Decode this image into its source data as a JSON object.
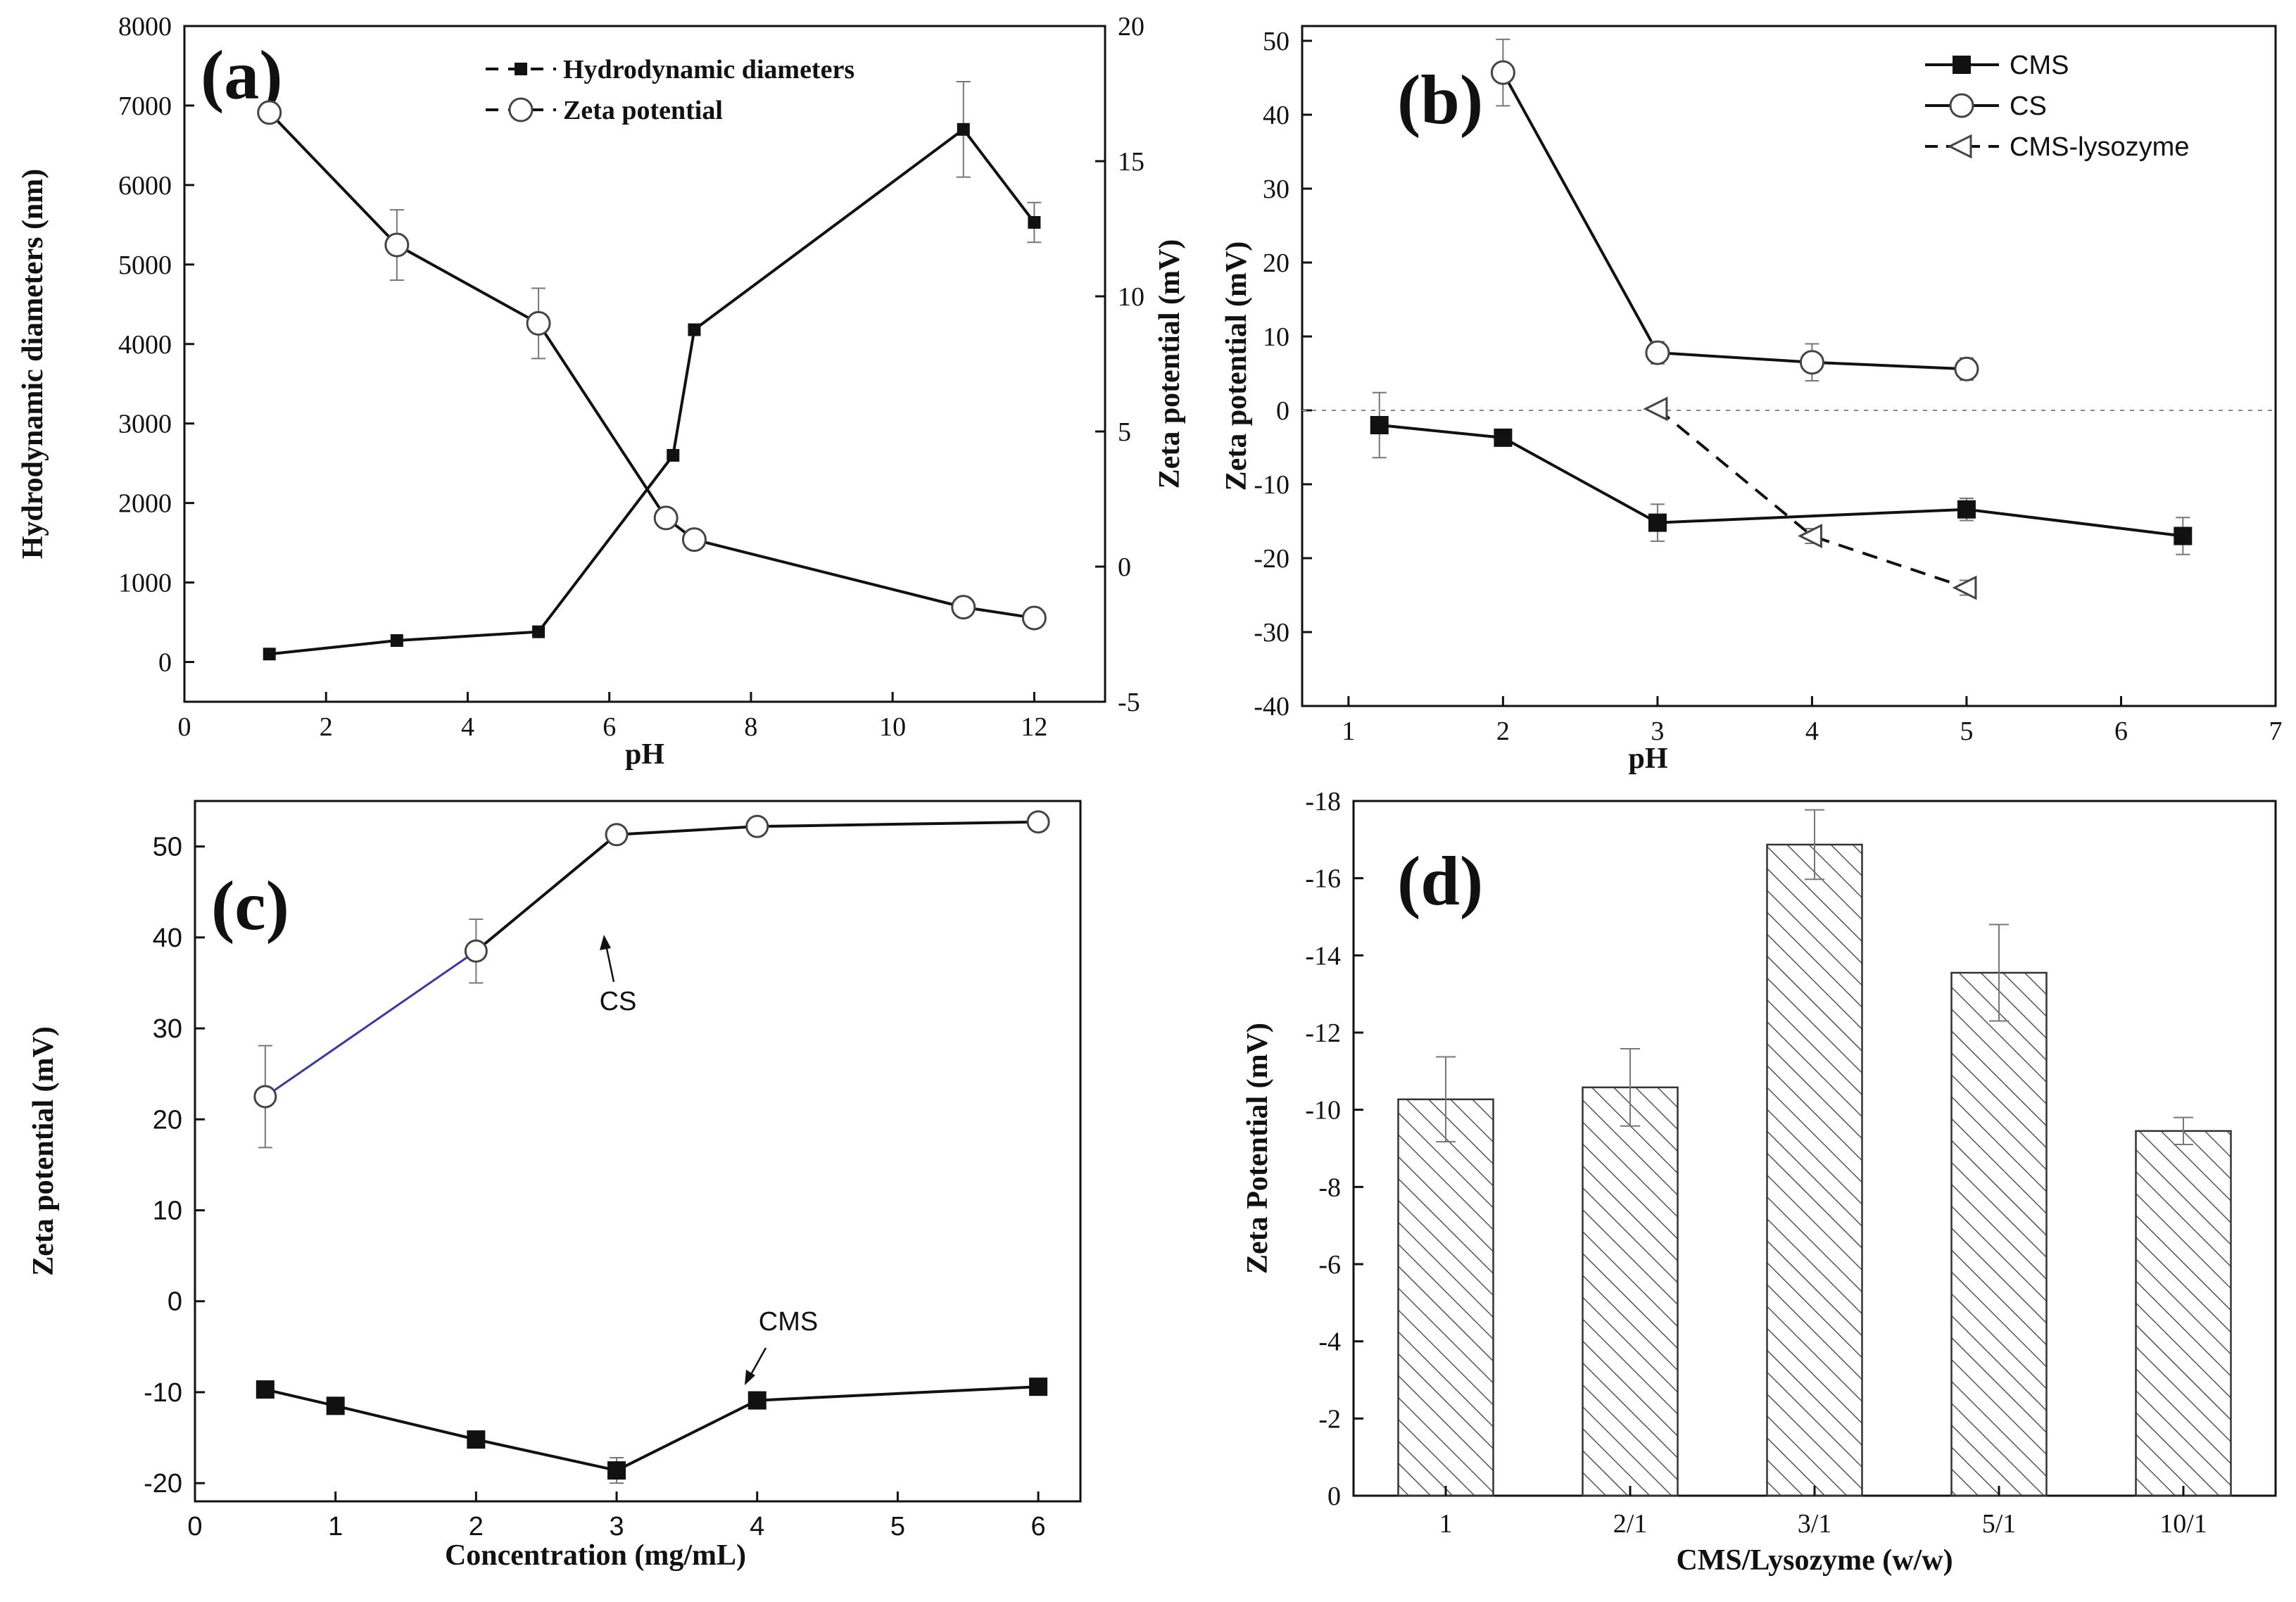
{
  "chart_data": [
    {
      "panel": "(a)",
      "type": "line",
      "xlabel": "pH",
      "ylabel": "Hydrodynamic diameters (nm)",
      "y2label": "Zeta potential (mV)",
      "xlim": [
        0,
        13
      ],
      "ylim": [
        -500,
        8000
      ],
      "y2lim": [
        -5,
        20
      ],
      "xticks": [
        0,
        2,
        4,
        6,
        8,
        10,
        12
      ],
      "yticks": [
        0,
        1000,
        2000,
        3000,
        4000,
        5000,
        6000,
        7000,
        8000
      ],
      "y2ticks": [
        -5,
        0,
        5,
        10,
        15,
        20
      ],
      "legend_position": "top-right",
      "series": [
        {
          "name": "Hydrodynamic diameters",
          "axis": "left",
          "marker": "filled-square",
          "x": [
            1.2,
            3,
            5,
            6.9,
            7.2,
            11,
            12
          ],
          "y": [
            100,
            270,
            380,
            2600,
            4180,
            6700,
            5530
          ],
          "err": [
            0,
            0,
            0,
            0,
            0,
            600,
            250
          ]
        },
        {
          "name": "Zeta potential",
          "axis": "right",
          "marker": "open-circle",
          "x": [
            1.2,
            3,
            5,
            6.8,
            7.2,
            11,
            12
          ],
          "y": [
            16.8,
            11.9,
            9.0,
            1.8,
            1.0,
            -1.5,
            -1.9
          ],
          "err": [
            0.3,
            1.3,
            1.3,
            0.3,
            0.3,
            0.3,
            0.2
          ]
        }
      ]
    },
    {
      "panel": "(b)",
      "type": "line",
      "xlabel": "pH",
      "ylabel": "Zeta potential (mV)",
      "xlim": [
        0.7,
        7
      ],
      "ylim": [
        -40,
        52
      ],
      "xticks": [
        1,
        2,
        3,
        4,
        5,
        6,
        7
      ],
      "yticks": [
        -40,
        -30,
        -20,
        -10,
        0,
        10,
        20,
        30,
        40,
        50
      ],
      "reference_line_y": 0,
      "legend_position": "top-right",
      "series": [
        {
          "name": "CMS",
          "marker": "filled-square",
          "x": [
            1.2,
            2,
            3,
            5,
            6.4
          ],
          "y": [
            -2,
            -3.7,
            -15.2,
            -13.4,
            -17
          ],
          "err": [
            4.4,
            0.3,
            2.5,
            1.5,
            2.5
          ]
        },
        {
          "name": "CS",
          "marker": "open-circle",
          "x": [
            2,
            3,
            4,
            5
          ],
          "y": [
            45.7,
            7.8,
            6.5,
            5.6
          ],
          "err": [
            4.5,
            1.5,
            2.5,
            1.5
          ]
        },
        {
          "name": "CMS-lysozyme",
          "marker": "open-left-triangle",
          "dashed": true,
          "x": [
            3,
            4,
            5
          ],
          "y": [
            0.2,
            -17,
            -24
          ],
          "err": [
            0.3,
            1,
            1
          ]
        }
      ]
    },
    {
      "panel": "(c)",
      "type": "line",
      "xlabel": "Concentration (mg/mL)",
      "ylabel": "Zeta potential (mV)",
      "xlim": [
        0,
        6.3
      ],
      "ylim": [
        -22,
        55
      ],
      "xticks": [
        0,
        1,
        2,
        3,
        4,
        5,
        6
      ],
      "yticks": [
        -20,
        -10,
        0,
        10,
        20,
        30,
        40,
        50
      ],
      "annotations": [
        "CS",
        "CMS"
      ],
      "series": [
        {
          "name": "CS",
          "marker": "open-circle",
          "x": [
            0.5,
            2,
            3,
            4,
            6
          ],
          "y": [
            22.5,
            38.5,
            51.3,
            52.2,
            52.7
          ],
          "err": [
            5.6,
            3.5,
            0.4,
            0.4,
            0.4
          ],
          "first_segment_color": "#3a3a9a"
        },
        {
          "name": "CMS",
          "marker": "filled-square",
          "x": [
            0.5,
            1,
            2,
            3,
            4,
            6
          ],
          "y": [
            -9.7,
            -11.5,
            -15.2,
            -18.6,
            -10.9,
            -9.4
          ],
          "err": [
            0.4,
            0.4,
            0.4,
            1.4,
            0.4,
            0.4
          ]
        }
      ]
    },
    {
      "panel": "(d)",
      "type": "bar",
      "xlabel": "CMS/Lysozyme (w/w)",
      "ylabel": "Zeta Potential (mV)",
      "categories": [
        "1",
        "2/1",
        "3/1",
        "5/1",
        "10/1"
      ],
      "values": [
        -10.27,
        -10.58,
        -16.87,
        -13.55,
        -9.45
      ],
      "err": [
        1.1,
        1.0,
        0.9,
        1.25,
        0.35
      ],
      "ylim": [
        0,
        -18
      ],
      "yticks": [
        0,
        -2,
        -4,
        -6,
        -8,
        -10,
        -12,
        -14,
        -16,
        -18
      ],
      "bar_fill": "diagonal-hatch"
    }
  ]
}
